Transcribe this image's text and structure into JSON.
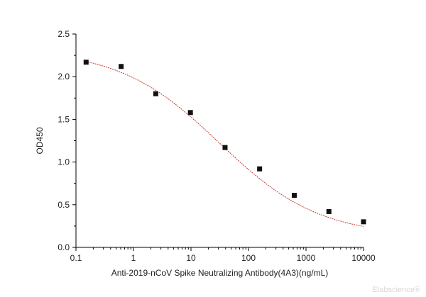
{
  "chart_data": {
    "type": "scatter",
    "title": "",
    "xlabel": "Anti-2019-nCoV Spike Neutralizing Antibody(4A3)(ng/mL)",
    "ylabel": "OD450",
    "x_scale": "log",
    "xlim": [
      0.1,
      10000
    ],
    "ylim": [
      0.0,
      2.5
    ],
    "x_ticks": [
      "0.1",
      "1",
      "10",
      "100",
      "1000",
      "10000"
    ],
    "y_ticks": [
      "0.0",
      "0.5",
      "1.0",
      "1.5",
      "2.0",
      "2.5"
    ],
    "grid": false,
    "legend": "none",
    "points": [
      {
        "x": 0.15,
        "y": 2.17
      },
      {
        "x": 0.61,
        "y": 2.12
      },
      {
        "x": 2.44,
        "y": 1.8
      },
      {
        "x": 9.77,
        "y": 1.58
      },
      {
        "x": 39.1,
        "y": 1.17
      },
      {
        "x": 156,
        "y": 0.92
      },
      {
        "x": 625,
        "y": 0.61
      },
      {
        "x": 2500,
        "y": 0.42
      },
      {
        "x": 10000,
        "y": 0.3
      }
    ],
    "fit": {
      "type": "4PL",
      "top": 2.32,
      "bottom": 0.13,
      "ec50": 31.0,
      "hill": 0.5
    },
    "colors": {
      "marker": "#111111",
      "fit_line": "#c0392b",
      "axis": "#000000"
    }
  },
  "watermark": "Elabscience®"
}
